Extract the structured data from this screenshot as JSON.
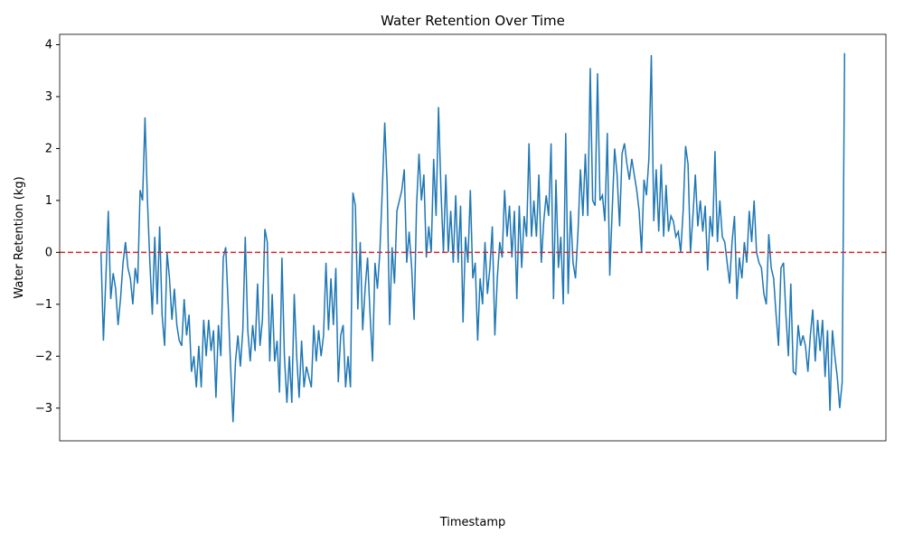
{
  "chart_data": {
    "type": "line",
    "title": "Water Retention Over Time",
    "x_label": "Timestamp",
    "y_label": "Water Retention (kg)",
    "color": "#1f77b4",
    "hline": 0,
    "hline_color": "#d62728",
    "ylim": [
      -3.63,
      4.2
    ],
    "yticks": [
      {
        "value": -3,
        "label": "−3"
      },
      {
        "value": -2,
        "label": "−2"
      },
      {
        "value": -1,
        "label": "−1"
      },
      0,
      1,
      2,
      3,
      4
    ],
    "values": [
      0,
      -1.7,
      -0.5,
      0.8,
      -0.9,
      -0.4,
      -0.7,
      -1.4,
      -0.9,
      -0.2,
      0.2,
      -0.3,
      -0.5,
      -1.0,
      -0.3,
      -0.6,
      1.2,
      1.0,
      2.6,
      1.0,
      -0.2,
      -1.2,
      0.3,
      -1.0,
      0.5,
      -1.2,
      -1.8,
      0.0,
      -0.5,
      -1.3,
      -0.7,
      -1.4,
      -1.7,
      -1.8,
      -0.9,
      -1.6,
      -1.2,
      -2.3,
      -2.0,
      -2.6,
      -1.8,
      -2.6,
      -1.3,
      -2.0,
      -1.3,
      -1.9,
      -1.5,
      -2.8,
      -1.4,
      -2.0,
      -0.1,
      0.1,
      -1.0,
      -2.2,
      -3.27,
      -2.1,
      -1.6,
      -2.2,
      -1.5,
      0.3,
      -1.5,
      -2.1,
      -1.4,
      -1.9,
      -0.6,
      -1.8,
      -1.3,
      0.45,
      0.2,
      -2.1,
      -0.8,
      -2.1,
      -1.7,
      -2.7,
      -0.1,
      -2.0,
      -2.9,
      -2.0,
      -2.9,
      -0.8,
      -2.0,
      -2.8,
      -1.7,
      -2.6,
      -2.2,
      -2.4,
      -2.6,
      -1.4,
      -2.1,
      -1.5,
      -2.0,
      -1.6,
      -0.2,
      -1.5,
      -0.5,
      -1.4,
      -0.3,
      -2.5,
      -1.6,
      -1.4,
      -2.6,
      -2.0,
      -2.6,
      1.15,
      0.9,
      -1.1,
      0.2,
      -1.5,
      -0.7,
      -0.1,
      -1.2,
      -2.1,
      -0.2,
      -0.7,
      0.0,
      1.2,
      2.5,
      1.3,
      -1.4,
      0.1,
      -0.6,
      0.8,
      1.0,
      1.2,
      1.6,
      -0.2,
      0.4,
      -0.3,
      -1.3,
      0.9,
      1.9,
      1.0,
      1.5,
      -0.1,
      0.5,
      0.0,
      1.8,
      0.7,
      2.8,
      1.2,
      0.0,
      1.5,
      0.0,
      0.8,
      -0.2,
      1.1,
      -0.2,
      0.9,
      -1.35,
      0.3,
      -0.2,
      1.2,
      -0.5,
      -0.2,
      -1.7,
      -0.5,
      -1.0,
      0.2,
      -0.8,
      -0.3,
      0.5,
      -1.6,
      -0.5,
      0.2,
      -0.1,
      1.2,
      0.3,
      0.9,
      -0.1,
      0.8,
      -0.9,
      0.9,
      -0.3,
      0.7,
      0.3,
      2.1,
      0.3,
      1.0,
      0.3,
      1.5,
      -0.2,
      0.6,
      1.1,
      0.7,
      2.1,
      -0.9,
      1.4,
      -0.3,
      0.3,
      -1.0,
      2.3,
      -0.8,
      0.8,
      -0.2,
      -0.5,
      0.4,
      1.6,
      0.7,
      1.9,
      0.7,
      3.55,
      1.0,
      0.9,
      3.45,
      1.0,
      1.1,
      0.6,
      2.3,
      -0.45,
      0.8,
      2.0,
      1.5,
      0.5,
      1.9,
      2.1,
      1.7,
      1.4,
      1.8,
      1.5,
      1.2,
      0.8,
      0.0,
      1.4,
      1.1,
      1.8,
      3.8,
      0.6,
      1.6,
      0.4,
      1.7,
      0.3,
      1.3,
      0.4,
      0.7,
      0.6,
      0.3,
      0.4,
      0.0,
      0.8,
      2.05,
      1.7,
      0.0,
      0.7,
      1.5,
      0.5,
      1.0,
      0.4,
      0.9,
      -0.35,
      0.7,
      0.3,
      1.95,
      0.2,
      1.0,
      0.3,
      0.2,
      -0.2,
      -0.6,
      0.2,
      0.7,
      -0.9,
      -0.1,
      -0.5,
      0.2,
      -0.2,
      0.8,
      0.2,
      1.0,
      0.0,
      -0.2,
      -0.3,
      -0.8,
      -1.0,
      0.35,
      -0.3,
      -0.5,
      -1.2,
      -1.8,
      -0.3,
      -0.2,
      -1.2,
      -2.0,
      -0.6,
      -2.3,
      -2.35,
      -1.4,
      -1.8,
      -1.6,
      -1.8,
      -2.3,
      -1.6,
      -1.1,
      -2.1,
      -1.3,
      -1.9,
      -1.3,
      -2.4,
      -1.5,
      -3.05,
      -1.5,
      -2.0,
      -2.4,
      -3.0,
      -2.5,
      3.84
    ]
  }
}
